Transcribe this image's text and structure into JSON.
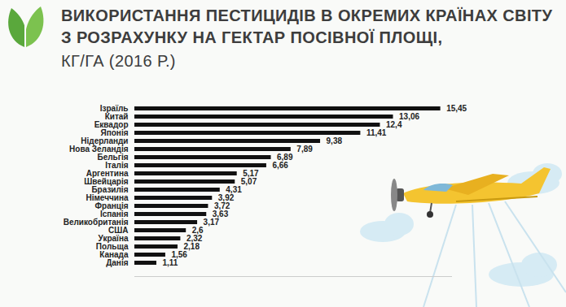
{
  "chart_data": {
    "type": "bar",
    "orientation": "horizontal",
    "title": "ВИКОРИСТАННЯ ПЕСТИЦИДІВ В ОКРЕМИХ КРАЇНАХ СВІТУ З РОЗРАХУНКУ НА ГЕКТАР ПОСІВНОЇ ПЛОЩІ,",
    "subtitle": "КГ/ГА (2016 Р.)",
    "categories": [
      "Ізраїль",
      "Китай",
      "Еквадор",
      "Японія",
      "Нідерланди",
      "Нова Зеландія",
      "Бельгія",
      "Італія",
      "Аргентина",
      "Швейцарія",
      "Бразилія",
      "Німеччина",
      "Франція",
      "Іспанія",
      "Великобританія",
      "США",
      "Україна",
      "Польща",
      "Канада",
      "Данія"
    ],
    "values": [
      15.45,
      13.06,
      12.4,
      11.41,
      9.38,
      7.89,
      6.89,
      6.66,
      5.17,
      5.07,
      4.31,
      3.92,
      3.72,
      3.63,
      3.17,
      2.6,
      2.32,
      2.18,
      1.56,
      1.11
    ],
    "value_labels": [
      "15,45",
      "13,06",
      "12,4",
      "11,41",
      "9,38",
      "7,89",
      "6,89",
      "6,66",
      "5,17",
      "5,07",
      "4,31",
      "3,92",
      "3,72",
      "3,63",
      "3,17",
      "2,6",
      "2,32",
      "2,18",
      "1,56",
      "1,11"
    ],
    "color": "#111111",
    "xlim": [
      0,
      16
    ],
    "data_labels": true,
    "tick_labels": "y",
    "grid": false
  }
}
